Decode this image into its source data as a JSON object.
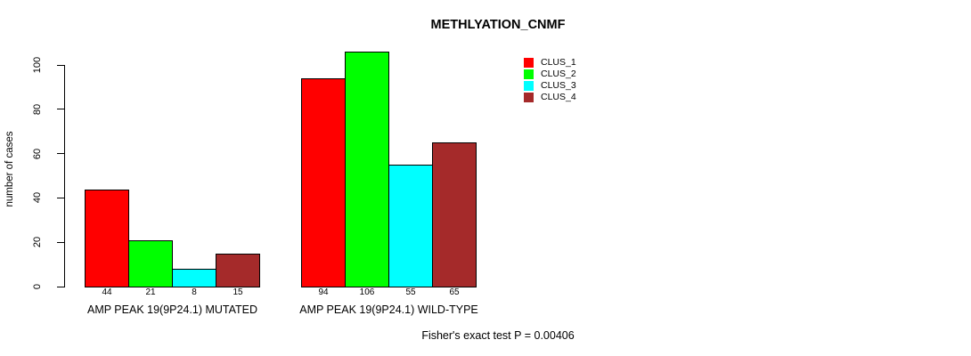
{
  "chart_data": {
    "type": "bar",
    "title": "METHLYATION_CNMF",
    "ylabel": "number of cases",
    "xlabel": "",
    "ylim": [
      0,
      100
    ],
    "yticks": [
      0,
      20,
      40,
      60,
      80,
      100
    ],
    "grid": false,
    "legend_position": "top-right",
    "categories": [
      "AMP PEAK 19(9P24.1) MUTATED",
      "AMP PEAK 19(9P24.1) WILD-TYPE"
    ],
    "series": [
      {
        "name": "CLUS_1",
        "color": "#FF0000",
        "values": [
          44,
          94
        ]
      },
      {
        "name": "CLUS_2",
        "color": "#00FF00",
        "values": [
          21,
          106
        ]
      },
      {
        "name": "CLUS_3",
        "color": "#00FFFF",
        "values": [
          8,
          55
        ]
      },
      {
        "name": "CLUS_4",
        "color": "#A52A2A",
        "values": [
          15,
          65
        ]
      }
    ],
    "bar_value_labels": true,
    "bar_outline_color": "#000000",
    "annotation": "Fisher's exact test P = 0.00406"
  }
}
